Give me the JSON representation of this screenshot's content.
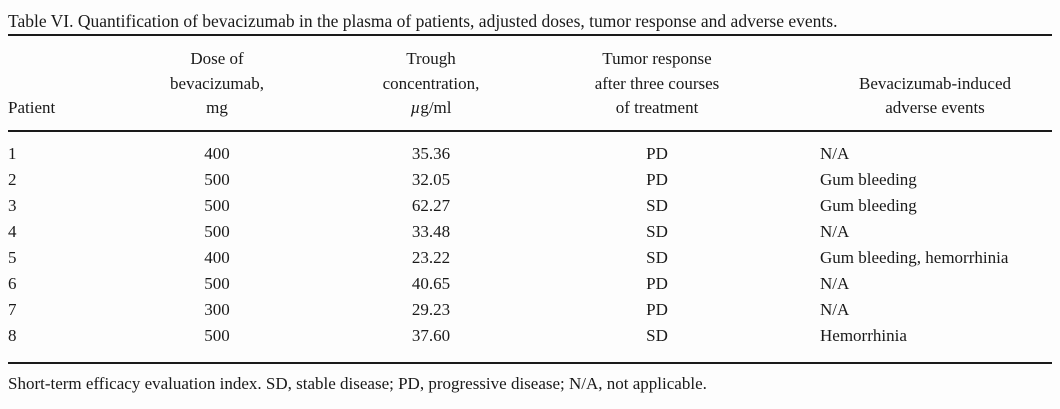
{
  "page": {
    "background_color": "#fdfdfd",
    "text_color": "#1a1a1a"
  },
  "table": {
    "title": "Table VI. Quantification of bevacizumab in the plasma of patients, adjusted doses, tumor response and adverse events.",
    "columns": [
      {
        "id": "patient",
        "lines": [
          "Patient"
        ]
      },
      {
        "id": "dose",
        "lines": [
          "Dose of",
          "bevacizumab,",
          "mg"
        ]
      },
      {
        "id": "trough",
        "lines": [
          "Trough",
          "concentration,"
        ],
        "unit": {
          "mu": "µ",
          "rest": "g/ml"
        }
      },
      {
        "id": "response",
        "lines": [
          "Tumor response",
          "after three courses",
          "of treatment"
        ]
      },
      {
        "id": "adverse",
        "lines": [
          "Bevacizumab-induced",
          "adverse events"
        ]
      }
    ],
    "rows": [
      {
        "patient": "1",
        "dose": "400",
        "trough": "35.36",
        "response": "PD",
        "adverse": "N/A"
      },
      {
        "patient": "2",
        "dose": "500",
        "trough": "32.05",
        "response": "PD",
        "adverse": "Gum bleeding"
      },
      {
        "patient": "3",
        "dose": "500",
        "trough": "62.27",
        "response": "SD",
        "adverse": "Gum bleeding"
      },
      {
        "patient": "4",
        "dose": "500",
        "trough": "33.48",
        "response": "SD",
        "adverse": "N/A"
      },
      {
        "patient": "5",
        "dose": "400",
        "trough": "23.22",
        "response": "SD",
        "adverse": "Gum bleeding, hemorrhinia"
      },
      {
        "patient": "6",
        "dose": "500",
        "trough": "40.65",
        "response": "PD",
        "adverse": "N/A"
      },
      {
        "patient": "7",
        "dose": "300",
        "trough": "29.23",
        "response": "PD",
        "adverse": "N/A"
      },
      {
        "patient": "8",
        "dose": "500",
        "trough": "37.60",
        "response": "SD",
        "adverse": "Hemorrhinia"
      }
    ],
    "footnote": "Short-term efficacy evaluation index. SD, stable disease; PD, progressive disease; N/A, not applicable."
  }
}
